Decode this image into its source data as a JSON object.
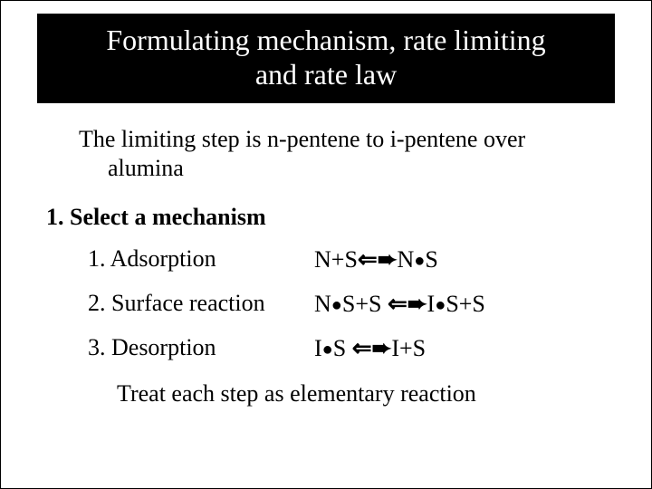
{
  "title_line1": "Formulating mechanism, rate limiting",
  "title_line2": "and rate law",
  "intro": "The limiting step is n-pentene to i-pentene over alumina",
  "section_head": "1.  Select a mechanism",
  "steps": [
    {
      "label": "1.  Adsorption",
      "eq_html": "N+S<span class='arrow'>&#8656;&#10152;</span>N<span class='dot'>&#9679;</span>S"
    },
    {
      "label": "2.  Surface reaction",
      "eq_html": "N<span class='dot'>&#9679;</span>S+S <span class='arrow'>&#8656;&#10152;</span>I<span class='dot'>&#9679;</span>S+S"
    },
    {
      "label": "3.  Desorption",
      "eq_html": "I<span class='dot'>&#9679;</span>S <span class='arrow'>&#8656;&#10152;</span>I+S"
    }
  ],
  "footer": "Treat each step as elementary reaction",
  "colors": {
    "title_bg": "#000000",
    "title_fg": "#ffffff",
    "body_bg": "#ffffff",
    "text": "#000000"
  },
  "fonts": {
    "family": "Times New Roman",
    "title_size_pt": 32,
    "body_size_pt": 26
  }
}
